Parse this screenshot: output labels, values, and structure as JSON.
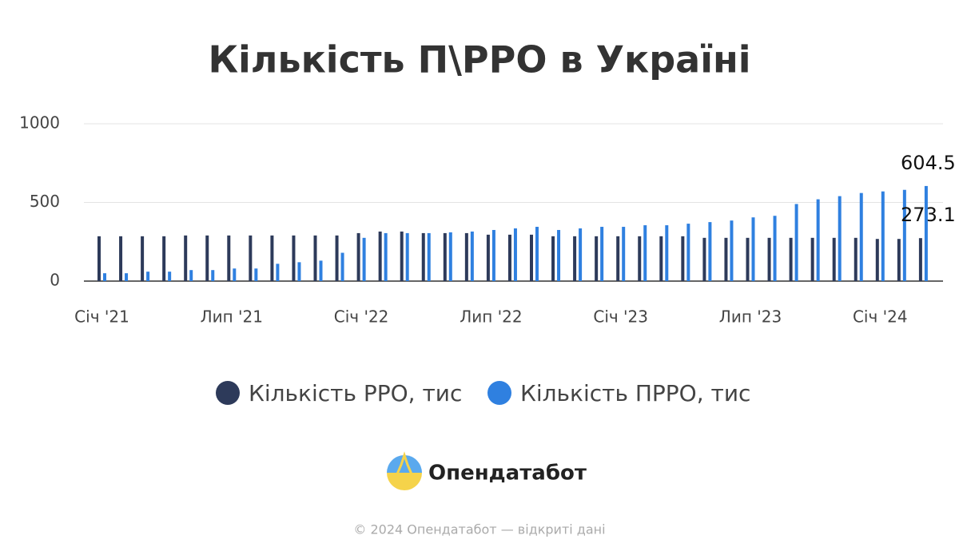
{
  "chart_data": {
    "type": "bar",
    "title": "Кількість П\\РРО в Україні",
    "categories": [
      "Січ '21",
      null,
      null,
      null,
      null,
      null,
      "Лип '21",
      null,
      null,
      null,
      null,
      null,
      "Січ '22",
      null,
      null,
      null,
      null,
      null,
      "Лип '22",
      null,
      null,
      null,
      null,
      null,
      "Січ '23",
      null,
      null,
      null,
      null,
      null,
      "Лип '23",
      null,
      null,
      null,
      null,
      null,
      "Січ '24",
      null,
      null
    ],
    "series": [
      {
        "name": "Кількість РРО, тис",
        "color": "#2d3a5a",
        "values": [
          285,
          285,
          285,
          285,
          290,
          290,
          290,
          290,
          290,
          290,
          290,
          290,
          305,
          315,
          315,
          305,
          305,
          305,
          295,
          295,
          295,
          285,
          285,
          285,
          285,
          285,
          285,
          285,
          275,
          275,
          275,
          275,
          275,
          275,
          275,
          275,
          268,
          268,
          273.1
        ]
      },
      {
        "name": "Кількість ПРРО, тис",
        "color": "#2f80e0",
        "values": [
          50,
          50,
          60,
          60,
          70,
          70,
          80,
          80,
          110,
          120,
          130,
          180,
          275,
          305,
          305,
          305,
          310,
          315,
          325,
          335,
          345,
          325,
          335,
          345,
          345,
          355,
          355,
          365,
          375,
          385,
          405,
          415,
          490,
          520,
          540,
          560,
          570,
          580,
          604.5
        ]
      }
    ],
    "ylim": [
      0,
      1000
    ],
    "yticks": [
      0,
      500,
      1000
    ],
    "grid": true,
    "legend": "bottom",
    "data_labels": "last"
  },
  "brand": "Опендатабот",
  "footer": "© 2024 Опендатабот — відкриті дані"
}
